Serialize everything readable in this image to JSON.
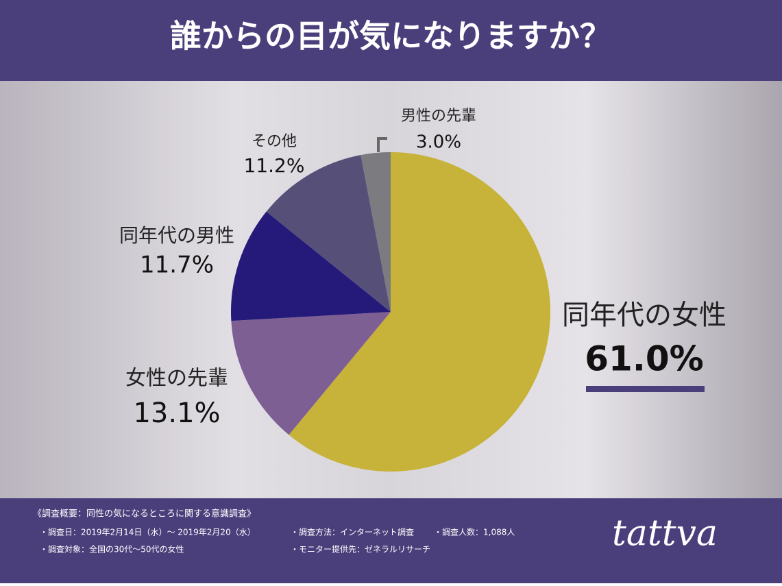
{
  "chart_data": {
    "type": "pie",
    "title": "誰からの目が気になりますか？",
    "categories": [
      "同年代の女性",
      "女性の先輩",
      "同年代の男性",
      "その他",
      "男性の先輩"
    ],
    "values": [
      61.0,
      13.1,
      11.7,
      11.2,
      3.0
    ],
    "value_labels": [
      "61.0%",
      "13.1%",
      "11.7%",
      "11.2%",
      "3.0%"
    ],
    "colors": [
      "#c7b23a",
      "#7d5f94",
      "#25197a",
      "#565079",
      "#7b7b80"
    ]
  },
  "footer": {
    "survey_title": "《調査概要：同性の気になるところに関する意識調査》",
    "notes": [
      "・調査日：2019年2月14日（水）〜 2019年2月20（水）",
      "・調査方法：インターネット調査",
      "・調査人数：1,088人",
      "・調査対象：全国の30代〜50代の女性",
      "・モニター提供先：ゼネラルリサーチ"
    ],
    "brand": "tattva"
  }
}
